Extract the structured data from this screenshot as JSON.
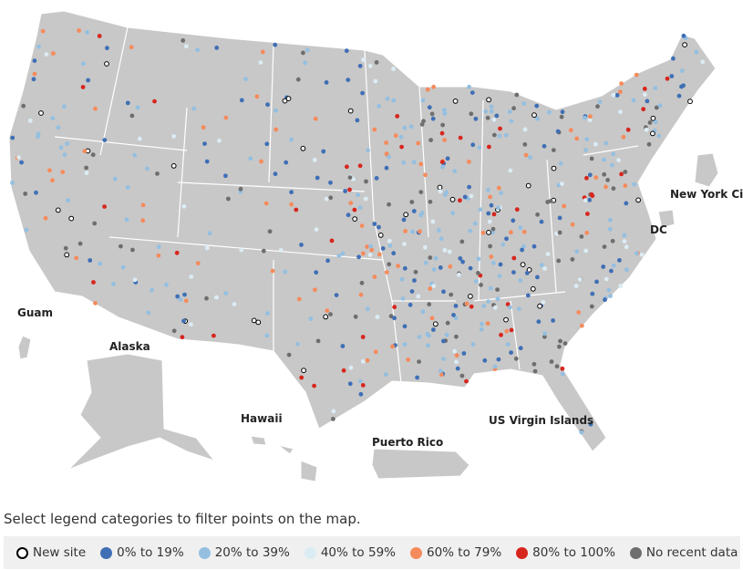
{
  "map": {
    "labels": {
      "guam": "Guam",
      "alaska": "Alaska",
      "hawaii": "Hawaii",
      "puerto_rico": "Puerto Rico",
      "usvi": "US Virgin Islands",
      "nyc": "New York City",
      "dc": "DC"
    }
  },
  "caption": "Select legend categories to filter points on the map.",
  "legend": [
    {
      "label": "New site",
      "color": "#ffffff"
    },
    {
      "label": "0% to 19%",
      "color": "#3f6fb5"
    },
    {
      "label": "20% to 39%",
      "color": "#94bfe0"
    },
    {
      "label": "40% to 59%",
      "color": "#dcecf5"
    },
    {
      "label": "60% to 79%",
      "color": "#f58b5c"
    },
    {
      "label": "80% to 100%",
      "color": "#d7261e"
    },
    {
      "label": "No recent data",
      "color": "#6e6e6e"
    }
  ]
}
